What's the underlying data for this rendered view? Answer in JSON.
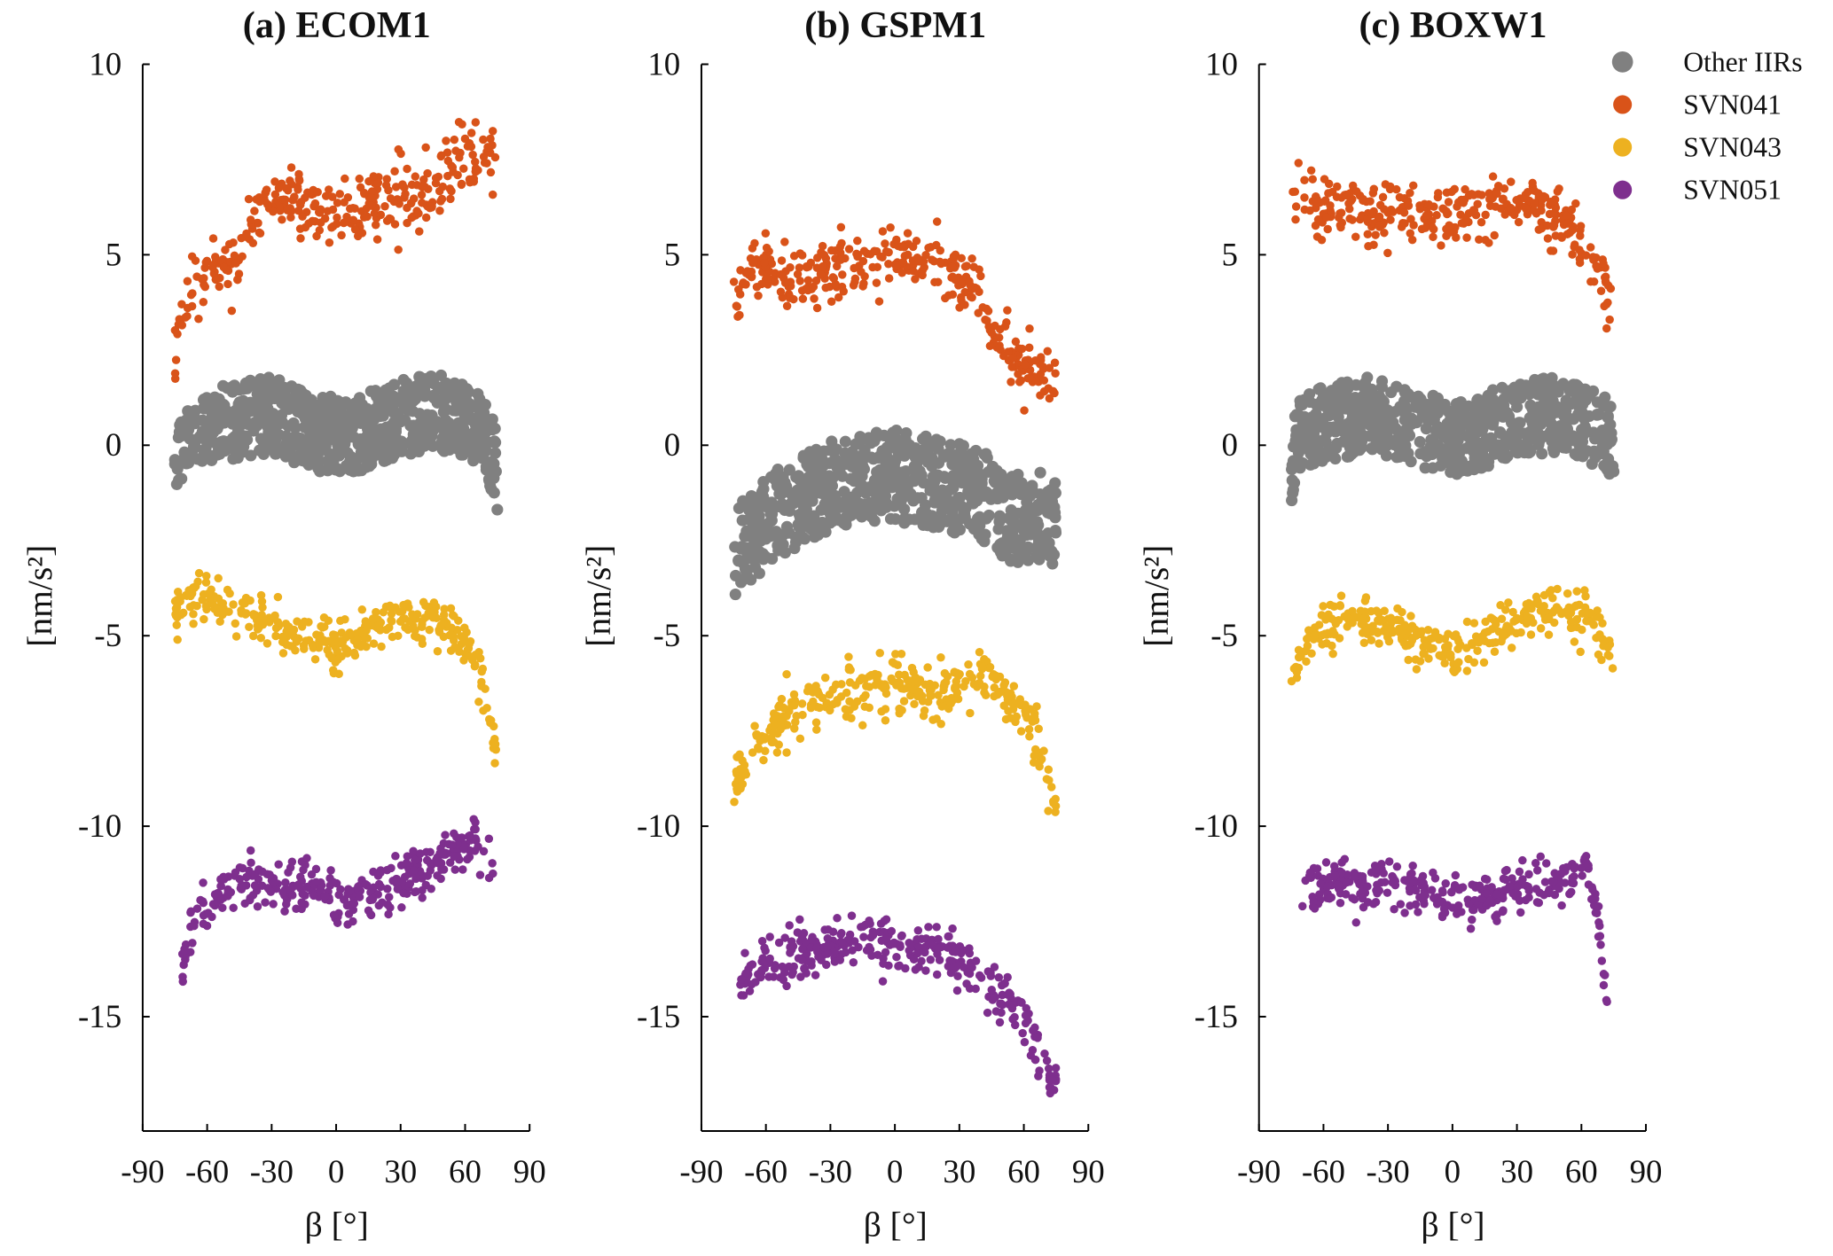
{
  "legend": {
    "placement": "top-right",
    "entries": [
      {
        "name": "Other IIRs",
        "color": "#808080"
      },
      {
        "name": "SVN041",
        "color": "#d95319"
      },
      {
        "name": "SVN043",
        "color": "#edb120"
      },
      {
        "name": "SVN051",
        "color": "#7e2f8e"
      }
    ]
  },
  "chart_data": [
    {
      "type": "scatter",
      "title": "(a) ECOM1",
      "xlabel": "β [°]",
      "ylabel": "[nm/s²]",
      "xlim": [
        -90,
        90
      ],
      "ylim": [
        -18,
        10
      ],
      "xticks": [
        -90,
        -60,
        -30,
        0,
        30,
        60,
        90
      ],
      "yticks": [
        10,
        5,
        0,
        -5,
        -10,
        -15
      ],
      "grid": false,
      "series": [
        {
          "name": "Other IIRs",
          "color": "#808080",
          "spread": 1.0,
          "points": [
            [
              -75,
              -0.4
            ],
            [
              -70,
              0.4
            ],
            [
              -50,
              0.6
            ],
            [
              -30,
              0.8
            ],
            [
              -10,
              0.3
            ],
            [
              10,
              0.3
            ],
            [
              30,
              0.7
            ],
            [
              45,
              0.9
            ],
            [
              60,
              0.7
            ],
            [
              70,
              0.2
            ],
            [
              75,
              -0.7
            ]
          ]
        },
        {
          "name": "SVN041",
          "color": "#d95319",
          "spread": 0.45,
          "points": [
            [
              -75,
              2.0
            ],
            [
              -72,
              3.4
            ],
            [
              -66,
              4.3
            ],
            [
              -55,
              4.5
            ],
            [
              -45,
              5.0
            ],
            [
              -38,
              5.9
            ],
            [
              -30,
              6.4
            ],
            [
              -15,
              6.3
            ],
            [
              0,
              6.1
            ],
            [
              15,
              6.3
            ],
            [
              40,
              6.5
            ],
            [
              50,
              7.1
            ],
            [
              60,
              7.6
            ],
            [
              75,
              7.4
            ]
          ]
        },
        {
          "name": "SVN043",
          "color": "#edb120",
          "spread": 0.3,
          "points": [
            [
              -75,
              -4.4
            ],
            [
              -65,
              -3.9
            ],
            [
              -50,
              -4.3
            ],
            [
              -30,
              -4.8
            ],
            [
              -15,
              -5.1
            ],
            [
              0,
              -5.3
            ],
            [
              15,
              -4.9
            ],
            [
              30,
              -4.5
            ],
            [
              50,
              -4.6
            ],
            [
              60,
              -5.2
            ],
            [
              68,
              -6.3
            ],
            [
              75,
              -8.0
            ]
          ]
        },
        {
          "name": "SVN051",
          "color": "#7e2f8e",
          "spread": 0.35,
          "points": [
            [
              -72,
              -14.0
            ],
            [
              -68,
              -12.6
            ],
            [
              -60,
              -11.9
            ],
            [
              -50,
              -11.6
            ],
            [
              -30,
              -11.4
            ],
            [
              -10,
              -11.6
            ],
            [
              0,
              -11.9
            ],
            [
              20,
              -11.7
            ],
            [
              40,
              -11.2
            ],
            [
              55,
              -10.6
            ],
            [
              65,
              -10.3
            ],
            [
              73,
              -10.8
            ]
          ]
        }
      ]
    },
    {
      "type": "scatter",
      "title": "(b) GSPM1",
      "xlabel": "β [°]",
      "ylabel": "[nm/s²]",
      "xlim": [
        -90,
        90
      ],
      "ylim": [
        -18,
        10
      ],
      "xticks": [
        -90,
        -60,
        -30,
        0,
        30,
        60,
        90
      ],
      "yticks": [
        10,
        5,
        0,
        -5,
        -10,
        -15
      ],
      "grid": false,
      "series": [
        {
          "name": "Other IIRs",
          "color": "#808080",
          "spread": 1.2,
          "points": [
            [
              -75,
              -2.8
            ],
            [
              -60,
              -2.0
            ],
            [
              -40,
              -1.3
            ],
            [
              -20,
              -0.9
            ],
            [
              0,
              -0.8
            ],
            [
              20,
              -1.0
            ],
            [
              40,
              -1.3
            ],
            [
              55,
              -2.0
            ],
            [
              65,
              -1.8
            ],
            [
              75,
              -2.2
            ]
          ]
        },
        {
          "name": "SVN041",
          "color": "#d95319",
          "spread": 0.4,
          "points": [
            [
              -75,
              3.8
            ],
            [
              -65,
              4.6
            ],
            [
              -50,
              4.5
            ],
            [
              -40,
              4.4
            ],
            [
              -20,
              4.8
            ],
            [
              0,
              5.1
            ],
            [
              20,
              4.8
            ],
            [
              35,
              4.2
            ],
            [
              45,
              3.2
            ],
            [
              55,
              2.2
            ],
            [
              65,
              2.0
            ],
            [
              75,
              1.7
            ]
          ]
        },
        {
          "name": "SVN043",
          "color": "#edb120",
          "spread": 0.35,
          "points": [
            [
              -75,
              -9.0
            ],
            [
              -65,
              -7.8
            ],
            [
              -50,
              -7.0
            ],
            [
              -30,
              -6.6
            ],
            [
              -10,
              -6.3
            ],
            [
              10,
              -6.4
            ],
            [
              30,
              -6.4
            ],
            [
              45,
              -6.0
            ],
            [
              55,
              -6.7
            ],
            [
              65,
              -7.5
            ],
            [
              75,
              -9.5
            ]
          ]
        },
        {
          "name": "SVN051",
          "color": "#7e2f8e",
          "spread": 0.35,
          "points": [
            [
              -72,
              -14.0
            ],
            [
              -60,
              -13.6
            ],
            [
              -40,
              -13.3
            ],
            [
              -20,
              -12.9
            ],
            [
              0,
              -13.0
            ],
            [
              20,
              -13.3
            ],
            [
              35,
              -13.8
            ],
            [
              50,
              -14.5
            ],
            [
              60,
              -15.2
            ],
            [
              70,
              -16.2
            ],
            [
              75,
              -16.8
            ]
          ]
        }
      ]
    },
    {
      "type": "scatter",
      "title": "(c) BOXW1",
      "xlabel": "β [°]",
      "ylabel": "[nm/s²]",
      "xlim": [
        -90,
        90
      ],
      "ylim": [
        -18,
        10
      ],
      "xticks": [
        -90,
        -60,
        -30,
        0,
        30,
        60,
        90
      ],
      "yticks": [
        10,
        5,
        0,
        -5,
        -10,
        -15
      ],
      "grid": false,
      "series": [
        {
          "name": "Other IIRs",
          "color": "#808080",
          "spread": 1.0,
          "points": [
            [
              -75,
              -0.5
            ],
            [
              -70,
              0.4
            ],
            [
              -40,
              0.8
            ],
            [
              -20,
              0.5
            ],
            [
              0,
              0.2
            ],
            [
              20,
              0.5
            ],
            [
              45,
              0.8
            ],
            [
              60,
              0.7
            ],
            [
              75,
              0.1
            ]
          ]
        },
        {
          "name": "SVN041",
          "color": "#d95319",
          "spread": 0.4,
          "points": [
            [
              -75,
              6.6
            ],
            [
              -70,
              6.5
            ],
            [
              -60,
              6.2
            ],
            [
              -40,
              6.2
            ],
            [
              -20,
              6.1
            ],
            [
              0,
              5.9
            ],
            [
              20,
              6.3
            ],
            [
              35,
              6.4
            ],
            [
              50,
              6.0
            ],
            [
              60,
              5.3
            ],
            [
              70,
              4.5
            ],
            [
              75,
              3.3
            ]
          ]
        },
        {
          "name": "SVN043",
          "color": "#edb120",
          "spread": 0.3,
          "points": [
            [
              -75,
              -6.5
            ],
            [
              -70,
              -5.3
            ],
            [
              -55,
              -4.7
            ],
            [
              -40,
              -4.6
            ],
            [
              -20,
              -5.0
            ],
            [
              0,
              -5.5
            ],
            [
              15,
              -5.0
            ],
            [
              30,
              -4.6
            ],
            [
              50,
              -4.3
            ],
            [
              65,
              -4.6
            ],
            [
              75,
              -5.6
            ]
          ]
        },
        {
          "name": "SVN051",
          "color": "#7e2f8e",
          "spread": 0.3,
          "points": [
            [
              -72,
              -11.8
            ],
            [
              -60,
              -11.5
            ],
            [
              -40,
              -11.5
            ],
            [
              -20,
              -11.6
            ],
            [
              0,
              -12.0
            ],
            [
              20,
              -11.8
            ],
            [
              40,
              -11.7
            ],
            [
              55,
              -11.5
            ],
            [
              62,
              -11.0
            ],
            [
              68,
              -12.5
            ],
            [
              72,
              -14.5
            ]
          ]
        }
      ]
    }
  ]
}
